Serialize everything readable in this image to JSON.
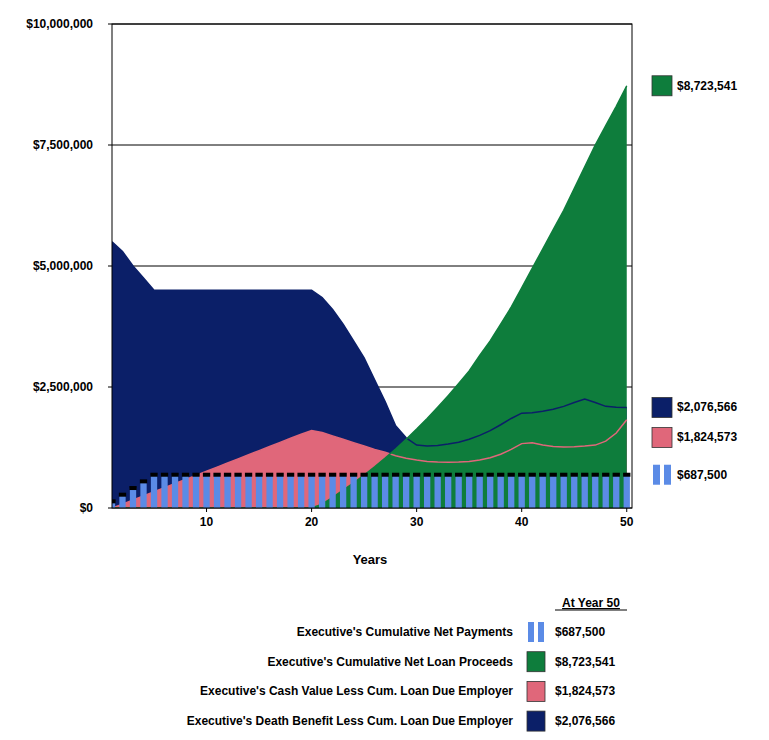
{
  "chart_data": {
    "type": "area",
    "x_label": "Years",
    "legend_title": "At Year 50",
    "x": [
      1,
      2,
      3,
      4,
      5,
      6,
      7,
      8,
      9,
      10,
      11,
      12,
      13,
      14,
      15,
      16,
      17,
      18,
      19,
      20,
      21,
      22,
      23,
      24,
      25,
      26,
      27,
      28,
      29,
      30,
      31,
      32,
      33,
      34,
      35,
      36,
      37,
      38,
      39,
      40,
      41,
      42,
      43,
      44,
      45,
      46,
      47,
      48,
      49,
      50
    ],
    "xlim": [
      1,
      50.5
    ],
    "xticks": [
      10,
      20,
      30,
      40,
      50
    ],
    "ylim": [
      0,
      10000000
    ],
    "yticks": [
      {
        "value": 0,
        "label": "$0"
      },
      {
        "value": 2500000,
        "label": "$2,500,000"
      },
      {
        "value": 5000000,
        "label": "$5,000,000"
      },
      {
        "value": 7500000,
        "label": "$7,500,000"
      },
      {
        "value": 10000000,
        "label": "$10,000,000"
      }
    ],
    "grid": true,
    "legend": "bottom",
    "series": [
      {
        "name": "Executive's Cumulative Net Payments",
        "type": "bar",
        "color": "#5b8be6",
        "end_label": "$687,500",
        "values": [
          137500,
          275000,
          412500,
          550000,
          687500,
          687500,
          687500,
          687500,
          687500,
          687500,
          687500,
          687500,
          687500,
          687500,
          687500,
          687500,
          687500,
          687500,
          687500,
          687500,
          687500,
          687500,
          687500,
          687500,
          687500,
          687500,
          687500,
          687500,
          687500,
          687500,
          687500,
          687500,
          687500,
          687500,
          687500,
          687500,
          687500,
          687500,
          687500,
          687500,
          687500,
          687500,
          687500,
          687500,
          687500,
          687500,
          687500,
          687500,
          687500,
          687500
        ]
      },
      {
        "name": "Executive's Cumulative Net Loan Proceeds",
        "type": "area",
        "color": "#0e7d3c",
        "end_label": "$8,723,541",
        "values": [
          0,
          0,
          0,
          0,
          0,
          0,
          0,
          0,
          0,
          0,
          0,
          0,
          0,
          0,
          0,
          0,
          0,
          0,
          0,
          0,
          80000,
          220000,
          370000,
          520000,
          680000,
          850000,
          1030000,
          1220000,
          1420000,
          1630000,
          1850000,
          2080000,
          2320000,
          2570000,
          2830000,
          3150000,
          3450000,
          3800000,
          4150000,
          4550000,
          4950000,
          5350000,
          5750000,
          6150000,
          6600000,
          7050000,
          7500000,
          7900000,
          8300000,
          8723541
        ]
      },
      {
        "name": "Executive's Cash Value Less Cum. Loan Due Employer",
        "type": "area",
        "color": "#e0677a",
        "end_label": "$1,824,573",
        "values": [
          0,
          80000,
          165000,
          250000,
          335000,
          420000,
          505000,
          590000,
          675000,
          760000,
          845000,
          930000,
          1015000,
          1100000,
          1185000,
          1270000,
          1355000,
          1440000,
          1525000,
          1600000,
          1560000,
          1490000,
          1420000,
          1350000,
          1280000,
          1210000,
          1150000,
          1080000,
          1030000,
          990000,
          960000,
          950000,
          945000,
          950000,
          960000,
          990000,
          1040000,
          1110000,
          1210000,
          1330000,
          1350000,
          1300000,
          1270000,
          1260000,
          1265000,
          1280000,
          1300000,
          1380000,
          1550000,
          1824573
        ]
      },
      {
        "name": "Executive's Death Benefit Less Cum. Loan Due Employer",
        "type": "area",
        "color": "#0b1f68",
        "end_label": "$2,076,566",
        "values": [
          5500000,
          5300000,
          5000000,
          4750000,
          4500000,
          4500000,
          4500000,
          4500000,
          4500000,
          4500000,
          4500000,
          4500000,
          4500000,
          4500000,
          4500000,
          4500000,
          4500000,
          4500000,
          4500000,
          4500000,
          4350000,
          4100000,
          3800000,
          3450000,
          3100000,
          2650000,
          2200000,
          1700000,
          1450000,
          1300000,
          1280000,
          1290000,
          1320000,
          1360000,
          1420000,
          1500000,
          1600000,
          1720000,
          1850000,
          1960000,
          1970000,
          2000000,
          2040000,
          2100000,
          2180000,
          2250000,
          2180000,
          2100000,
          2080000,
          2076566
        ]
      }
    ]
  }
}
